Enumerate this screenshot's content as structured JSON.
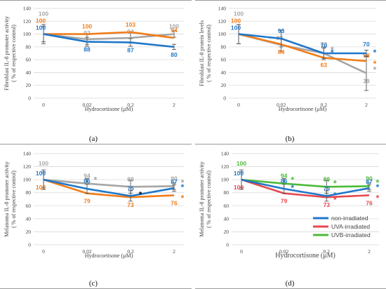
{
  "colors": {
    "blue": "#1f77c8",
    "orange": "#f07d1a",
    "gray": "#a6a6a6",
    "red": "#e8484f",
    "green": "#4cbb37"
  },
  "chart_data": [
    {
      "caption": "(a)",
      "type": "line",
      "ylabel": "Fibroblast IL-8 promoter activity ( % of respective control)",
      "xlabel": "Hydrocortisone (μM)",
      "categories": [
        "0",
        "0.02",
        "0.2",
        "2"
      ],
      "ylim": [
        0,
        140
      ],
      "yticks": [
        "0",
        "20",
        "40",
        "60",
        "80",
        "100",
        "120",
        "140"
      ],
      "grid": true,
      "series": [
        {
          "color": "blue",
          "values": [
            100,
            88,
            87,
            80
          ],
          "labels": [
            "100",
            "88",
            "87",
            "80"
          ],
          "errors": [
            15,
            7,
            6,
            4
          ],
          "stars": [
            null,
            null,
            null,
            null
          ]
        },
        {
          "color": "orange",
          "values": [
            100,
            100,
            103,
            94
          ],
          "labels": [
            "100",
            "100",
            "103",
            "94"
          ],
          "errors": [
            0,
            0,
            0,
            0
          ],
          "stars": [
            null,
            null,
            null,
            null
          ]
        },
        {
          "color": "gray",
          "values": [
            100,
            92,
            94,
            100
          ],
          "labels": [
            "100",
            "92",
            "94",
            "100"
          ],
          "errors": [
            12,
            8,
            8,
            5
          ],
          "stars": [
            null,
            null,
            null,
            null
          ]
        }
      ]
    },
    {
      "caption": "(b)",
      "type": "line",
      "ylabel": "Fibroblast IL-8 protein levels ( % of respective control)",
      "xlabel": "Hydrocortisone (μM)",
      "categories": [
        "0",
        "0.02",
        "0.2",
        "2"
      ],
      "ylim": [
        0,
        140
      ],
      "yticks": [
        "0",
        "20",
        "40",
        "60",
        "80",
        "100",
        "120",
        "140"
      ],
      "grid": true,
      "series": [
        {
          "color": "blue",
          "values": [
            100,
            93,
            70,
            70
          ],
          "labels": [
            "100",
            "93",
            "70",
            "70"
          ],
          "errors": [
            15,
            13,
            8,
            5
          ],
          "stars": [
            null,
            null,
            "*",
            "*"
          ]
        },
        {
          "color": "orange",
          "values": [
            100,
            84,
            63,
            58
          ],
          "labels": [
            "100",
            "84",
            "63",
            "58"
          ],
          "errors": [
            0,
            0,
            0,
            0
          ],
          "stars": [
            null,
            null,
            null,
            "*"
          ]
        },
        {
          "color": "gray",
          "values": [
            100,
            83,
            70,
            39
          ],
          "labels": [
            "100",
            "83",
            "70",
            "39"
          ],
          "errors": [
            15,
            10,
            10,
            27
          ],
          "stars": [
            null,
            null,
            "*",
            "*"
          ]
        }
      ]
    },
    {
      "caption": "(c)",
      "type": "line",
      "ylabel": "Melanoma IL-8 promoter activity ( % of respective control)",
      "xlabel": "Hydrocortisone (μM)",
      "categories": [
        "0",
        "0.02",
        "0.2",
        "2"
      ],
      "ylim": [
        0,
        140
      ],
      "yticks": [
        "0",
        "20",
        "40",
        "60",
        "80",
        "100",
        "120",
        "140"
      ],
      "grid": true,
      "series": [
        {
          "color": "blue",
          "values": [
            100,
            86,
            75,
            87
          ],
          "labels": [
            "100",
            "86",
            "75",
            "87"
          ],
          "errors": [
            15,
            7,
            8,
            5
          ],
          "stars": [
            null,
            null,
            "*",
            "*"
          ]
        },
        {
          "color": "orange",
          "values": [
            100,
            79,
            73,
            76
          ],
          "labels": [
            "100",
            "79",
            "73",
            "76"
          ],
          "errors": [
            0,
            0,
            0,
            0
          ],
          "stars": [
            null,
            null,
            null,
            "*"
          ]
        },
        {
          "color": "gray",
          "values": [
            100,
            94,
            89,
            90
          ],
          "labels": [
            "100",
            "94",
            "89",
            "90"
          ],
          "errors": [
            12,
            8,
            10,
            5
          ],
          "stars": [
            null,
            "*",
            null,
            "*"
          ]
        }
      ]
    },
    {
      "caption": "(d)",
      "type": "line",
      "ylabel": "Melanoma IL-8 promoter activity ( % of respective control)",
      "xlabel": "Hydrocortisone (μM)",
      "categories": [
        "0",
        "0.02",
        "0.2",
        "2"
      ],
      "ylim": [
        0,
        140
      ],
      "yticks": [
        "0",
        "20",
        "40",
        "60",
        "80",
        "100",
        "120",
        "140"
      ],
      "grid": true,
      "legend_position": "bottom-right",
      "series": [
        {
          "name": "non-irradiated",
          "color": "blue",
          "values": [
            100,
            86,
            75,
            87
          ],
          "labels": [
            "100",
            "86",
            "75",
            "87"
          ],
          "errors": [
            15,
            7,
            8,
            5
          ],
          "stars": [
            null,
            "*",
            "*",
            "*"
          ]
        },
        {
          "name": "UVA-irradiated",
          "color": "red",
          "values": [
            100,
            79,
            73,
            76
          ],
          "labels": [
            "100",
            "79",
            "73",
            "76"
          ],
          "errors": [
            0,
            0,
            0,
            0
          ],
          "stars": [
            null,
            null,
            "*",
            "*"
          ]
        },
        {
          "name": "UVB-irradiated",
          "color": "green",
          "values": [
            100,
            94,
            89,
            90
          ],
          "labels": [
            "100",
            "94",
            "89",
            "90"
          ],
          "errors": [
            12,
            8,
            10,
            5
          ],
          "stars": [
            null,
            "*",
            "*",
            "*"
          ]
        }
      ]
    }
  ]
}
